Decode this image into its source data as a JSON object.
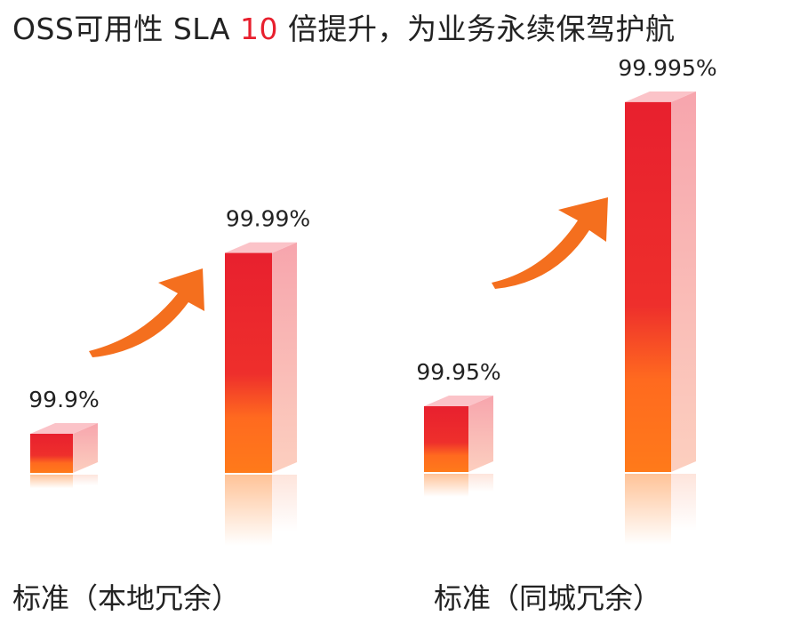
{
  "title": {
    "prefix": "OSS可用性 SLA ",
    "highlight": "10",
    "suffix": " 倍提升，为业务永续保驾护航",
    "highlight_color": "#e8202e"
  },
  "chart_data": {
    "type": "bar",
    "title": "OSS可用性 SLA 10 倍提升，为业务永续保驾护航",
    "groups": [
      {
        "name": "标准（本地冗余）",
        "bars": [
          {
            "label": "99.9%",
            "value": 99.9
          },
          {
            "label": "99.99%",
            "value": 99.99
          }
        ]
      },
      {
        "name": "标准（同城冗余）",
        "bars": [
          {
            "label": "99.95%",
            "value": 99.95
          },
          {
            "label": "99.995%",
            "value": 99.995
          }
        ]
      }
    ],
    "colors": {
      "top": "#e8202e",
      "bottom": "#ff7a1a",
      "arrow": "#f46f1e",
      "side": "#f9b4ba"
    }
  }
}
